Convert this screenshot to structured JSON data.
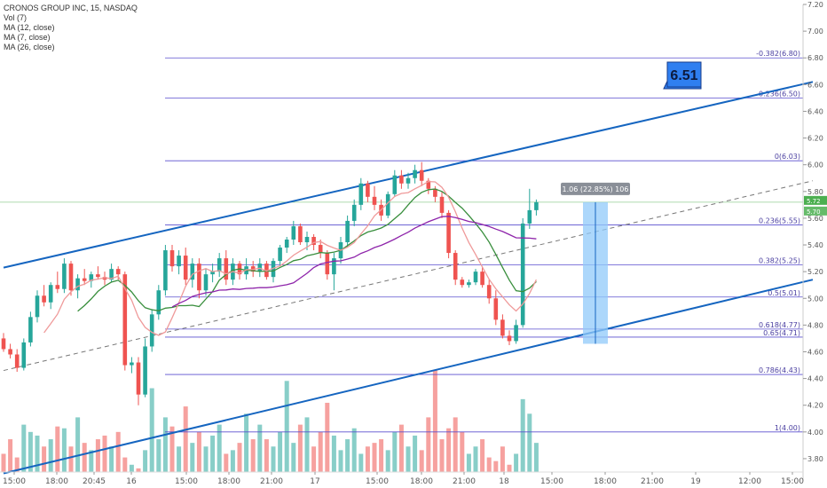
{
  "legend": {
    "symbol": "CRONOS GROUP INC, 15, NASDAQ",
    "vol": "Vol (7)",
    "ma12": "MA (12, close)",
    "ma7": "MA (7, close)",
    "ma26": "MA (26, close)"
  },
  "callout": {
    "text": "6.51",
    "color": "#2f7ff0"
  },
  "measure": {
    "text": "1.06 (22.85%) 106",
    "from": 4.66,
    "to": 5.72
  },
  "price_tags": [
    "5.72",
    "5.70"
  ],
  "colors": {
    "up": "#26a69a",
    "down": "#ef5350",
    "channel": "#1565c0",
    "fib": "#5a4fcf",
    "ma12": "#388e3c",
    "ma7": "#ef9a9a",
    "ma26": "#8e24aa",
    "last_price": "#4caf50",
    "measure_fill": "#90caf9"
  },
  "chart_data": {
    "type": "candlestick",
    "title": "CRONOS GROUP INC, 15, NASDAQ",
    "ylim": [
      3.7,
      7.2
    ],
    "y_ticks": [
      "7.20",
      "7.00",
      "6.80",
      "6.60",
      "6.40",
      "6.20",
      "6.00",
      "5.80",
      "5.60",
      "5.40",
      "5.20",
      "5.00",
      "4.80",
      "4.60",
      "4.40",
      "4.20",
      "4.00",
      "3.80"
    ],
    "x_ticks": [
      "15:00",
      "18:00",
      "20:45",
      "16",
      "15:00",
      "18:00",
      "21:00",
      "17",
      "15:00",
      "18:00",
      "21:00",
      "18",
      "15:00",
      "18:00",
      "21:00",
      "19",
      "12:00",
      "15:00"
    ],
    "fib_levels": [
      {
        "ratio": "-0.382",
        "price": 6.8,
        "label": "-0.382(6.80)"
      },
      {
        "ratio": "-0.236",
        "price": 6.5,
        "label": "-0.236(6.50)"
      },
      {
        "ratio": "0",
        "price": 6.03,
        "label": "0(6.03)"
      },
      {
        "ratio": "0.236",
        "price": 5.55,
        "label": "0.236(5.55)"
      },
      {
        "ratio": "0.382",
        "price": 5.25,
        "label": "0.382(5.25)"
      },
      {
        "ratio": "0.5",
        "price": 5.01,
        "label": "0.5(5.01)"
      },
      {
        "ratio": "0.618",
        "price": 4.77,
        "label": "0.618(4.77)"
      },
      {
        "ratio": "0.65",
        "price": 4.71,
        "label": "0.65(4.71)"
      },
      {
        "ratio": "0.786",
        "price": 4.43,
        "label": "0.786(4.43)"
      },
      {
        "ratio": "1",
        "price": 4.0,
        "label": "1(4.00)"
      }
    ],
    "last_price": 5.72,
    "channel": {
      "upper": [
        [
          0,
          5.23
        ],
        [
          120,
          6.62
        ]
      ],
      "lower": [
        [
          0,
          3.69
        ],
        [
          120,
          5.14
        ]
      ],
      "mid": [
        [
          0,
          4.46
        ],
        [
          120,
          5.88
        ]
      ]
    },
    "candles": [
      [
        4.7,
        4.74,
        4.6,
        4.62
      ],
      [
        4.62,
        4.66,
        4.55,
        4.58
      ],
      [
        4.58,
        4.62,
        4.45,
        4.48
      ],
      [
        4.48,
        4.7,
        4.46,
        4.67
      ],
      [
        4.67,
        4.9,
        4.64,
        4.86
      ],
      [
        4.86,
        5.06,
        4.82,
        5.02
      ],
      [
        5.02,
        5.1,
        4.94,
        4.97
      ],
      [
        4.97,
        5.12,
        4.92,
        5.1
      ],
      [
        5.1,
        5.2,
        5.04,
        5.07
      ],
      [
        5.07,
        5.3,
        5.04,
        5.26
      ],
      [
        5.26,
        5.28,
        5.02,
        5.06
      ],
      [
        5.06,
        5.18,
        5.0,
        5.15
      ],
      [
        5.15,
        5.22,
        5.1,
        5.13
      ],
      [
        5.13,
        5.2,
        5.08,
        5.18
      ],
      [
        5.18,
        5.24,
        5.14,
        5.16
      ],
      [
        5.16,
        5.2,
        5.1,
        5.14
      ],
      [
        5.14,
        5.26,
        5.12,
        5.22
      ],
      [
        5.22,
        5.24,
        5.14,
        5.18
      ],
      [
        5.18,
        5.2,
        4.46,
        4.5
      ],
      [
        4.5,
        4.56,
        4.44,
        4.52
      ],
      [
        4.52,
        4.56,
        4.2,
        4.28
      ],
      [
        4.28,
        4.7,
        4.26,
        4.64
      ],
      [
        4.64,
        4.92,
        4.6,
        4.88
      ],
      [
        4.88,
        5.1,
        4.84,
        5.06
      ],
      [
        5.06,
        5.4,
        5.02,
        5.36
      ],
      [
        5.36,
        5.4,
        5.2,
        5.24
      ],
      [
        5.24,
        5.36,
        5.18,
        5.32
      ],
      [
        5.32,
        5.38,
        5.1,
        5.14
      ],
      [
        5.14,
        5.3,
        5.08,
        5.26
      ],
      [
        5.26,
        5.3,
        5.0,
        5.06
      ],
      [
        5.06,
        5.22,
        5.02,
        5.18
      ],
      [
        5.18,
        5.26,
        5.12,
        5.2
      ],
      [
        5.2,
        5.34,
        5.16,
        5.3
      ],
      [
        5.3,
        5.36,
        5.1,
        5.14
      ],
      [
        5.14,
        5.3,
        5.1,
        5.26
      ],
      [
        5.26,
        5.28,
        5.14,
        5.18
      ],
      [
        5.18,
        5.3,
        5.14,
        5.24
      ],
      [
        5.24,
        5.28,
        5.16,
        5.2
      ],
      [
        5.2,
        5.3,
        5.16,
        5.26
      ],
      [
        5.26,
        5.28,
        5.14,
        5.16
      ],
      [
        5.16,
        5.3,
        5.12,
        5.28
      ],
      [
        5.28,
        5.4,
        5.24,
        5.38
      ],
      [
        5.38,
        5.46,
        5.34,
        5.44
      ],
      [
        5.44,
        5.58,
        5.4,
        5.54
      ],
      [
        5.54,
        5.56,
        5.4,
        5.42
      ],
      [
        5.42,
        5.5,
        5.36,
        5.46
      ],
      [
        5.46,
        5.48,
        5.36,
        5.4
      ],
      [
        5.4,
        5.44,
        5.3,
        5.34
      ],
      [
        5.34,
        5.36,
        5.14,
        5.18
      ],
      [
        5.18,
        5.34,
        5.06,
        5.3
      ],
      [
        5.3,
        5.46,
        5.26,
        5.42
      ],
      [
        5.42,
        5.62,
        5.38,
        5.58
      ],
      [
        5.58,
        5.74,
        5.54,
        5.7
      ],
      [
        5.7,
        5.9,
        5.66,
        5.86
      ],
      [
        5.86,
        5.88,
        5.72,
        5.76
      ],
      [
        5.76,
        5.84,
        5.66,
        5.7
      ],
      [
        5.7,
        5.74,
        5.58,
        5.62
      ],
      [
        5.62,
        5.8,
        5.6,
        5.78
      ],
      [
        5.78,
        5.96,
        5.76,
        5.92
      ],
      [
        5.92,
        5.96,
        5.82,
        5.86
      ],
      [
        5.86,
        5.94,
        5.82,
        5.9
      ],
      [
        5.9,
        6.0,
        5.86,
        5.96
      ],
      [
        5.96,
        6.02,
        5.84,
        5.88
      ],
      [
        5.88,
        5.9,
        5.78,
        5.82
      ],
      [
        5.82,
        5.84,
        5.72,
        5.76
      ],
      [
        5.76,
        5.8,
        5.6,
        5.64
      ],
      [
        5.64,
        5.66,
        5.3,
        5.34
      ],
      [
        5.34,
        5.36,
        5.1,
        5.14
      ],
      [
        5.14,
        5.16,
        5.08,
        5.1
      ],
      [
        5.1,
        5.14,
        5.08,
        5.12
      ],
      [
        5.12,
        5.22,
        5.1,
        5.2
      ],
      [
        5.2,
        5.24,
        5.08,
        5.1
      ],
      [
        5.1,
        5.14,
        4.96,
        5.0
      ],
      [
        5.0,
        5.06,
        4.8,
        4.84
      ],
      [
        4.84,
        4.88,
        4.7,
        4.72
      ],
      [
        4.72,
        4.76,
        4.65,
        4.68
      ],
      [
        4.68,
        4.84,
        4.66,
        4.8
      ],
      [
        4.8,
        5.6,
        4.78,
        5.56
      ],
      [
        5.56,
        5.82,
        5.52,
        5.66
      ],
      [
        5.66,
        5.74,
        5.62,
        5.72
      ]
    ],
    "volumes": [
      10,
      18,
      8,
      26,
      22,
      20,
      14,
      18,
      25,
      24,
      14,
      30,
      16,
      12,
      18,
      20,
      14,
      22,
      8,
      4,
      2,
      12,
      46,
      18,
      30,
      25,
      14,
      36,
      16,
      22,
      14,
      20,
      26,
      10,
      12,
      16,
      32,
      18,
      26,
      18,
      14,
      22,
      50,
      16,
      26,
      30,
      14,
      22,
      38,
      20,
      12,
      18,
      24,
      10,
      14,
      16,
      18,
      12,
      22,
      26,
      14,
      20,
      12,
      30,
      56,
      18,
      24,
      30,
      22,
      10,
      14,
      18,
      8,
      6,
      14,
      4,
      10,
      40,
      32,
      16
    ]
  }
}
